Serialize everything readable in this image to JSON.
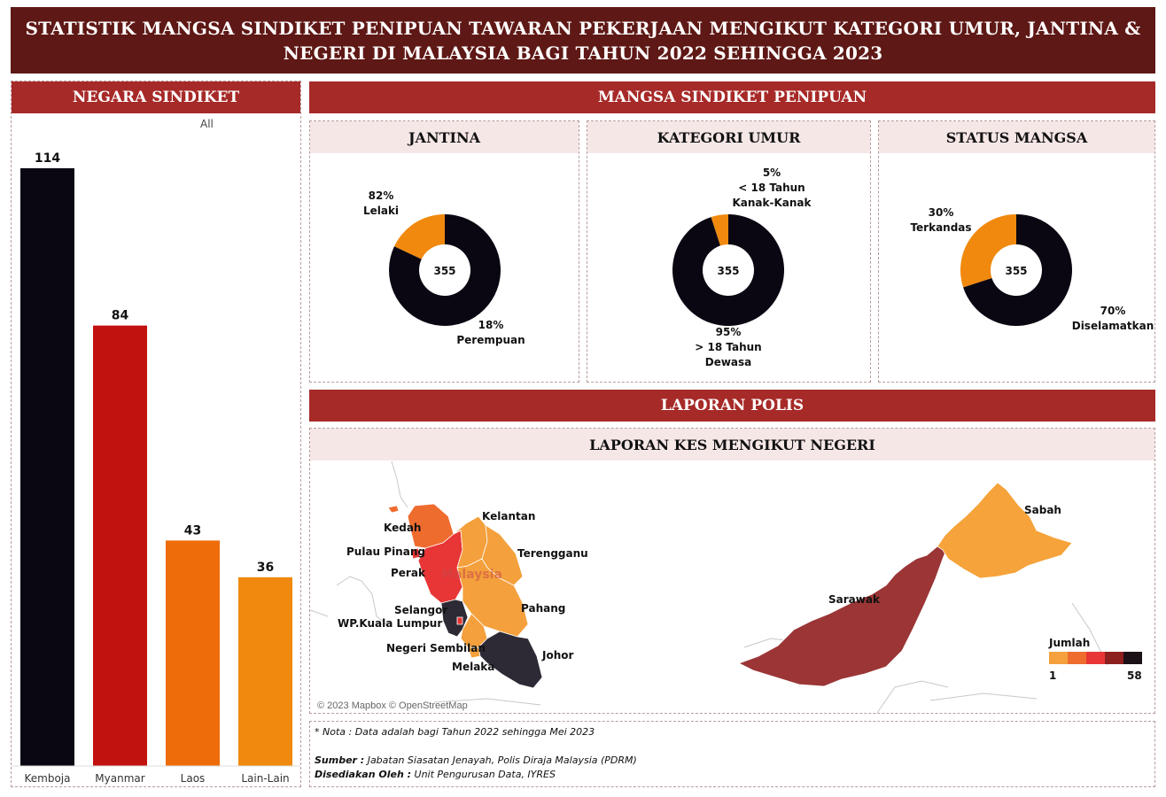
{
  "page": {
    "title": "STATISTIK MANGSA SINDIKET PENIPUAN TAWARAN PEKERJAAN MENGIKUT KATEGORI UMUR, JANTINA & NEGERI DI MALAYSIA BAGI TAHUN 2022 SEHINGGA 2023"
  },
  "left_panel": {
    "header": "NEGARA SINDIKET",
    "filter_label": "All"
  },
  "mangsa_section": {
    "header": "MANGSA SINDIKET PENIPUAN"
  },
  "donut_headers": {
    "jantina": "JANTINA",
    "umur": "KATEGORI UMUR",
    "status": "STATUS MANGSA"
  },
  "polis_section": {
    "header": "LAPORAN POLIS",
    "map_header": "LAPORAN KES MENGIKUT NEGERI"
  },
  "chart_data": [
    {
      "type": "bar",
      "categories": [
        "Kemboja",
        "Myanmar",
        "Laos",
        "Lain-Lain"
      ],
      "values": [
        114,
        84,
        43,
        36
      ],
      "colors": [
        "#0b0712",
        "#c2120f",
        "#ef6c0a",
        "#f0890e"
      ],
      "title": "NEGARA SINDIKET",
      "ylim": [
        0,
        114
      ],
      "grid": false,
      "data_labels": true
    },
    {
      "type": "pie",
      "title": "JANTINA",
      "center_label": "355",
      "slices": [
        {
          "name": "Lelaki",
          "percent": 82,
          "color": "#0b0712"
        },
        {
          "name": "Perempuan",
          "percent": 18,
          "color": "#f0890e"
        }
      ]
    },
    {
      "type": "pie",
      "title": "KATEGORI UMUR",
      "center_label": "355",
      "slices": [
        {
          "name": "> 18 Tahun Dewasa",
          "line1": "> 18 Tahun",
          "line2": "Dewasa",
          "percent": 95,
          "color": "#0b0712"
        },
        {
          "name": "< 18 Tahun Kanak-Kanak",
          "line1": "< 18 Tahun",
          "line2": "Kanak-Kanak",
          "percent": 5,
          "color": "#f0890e"
        }
      ]
    },
    {
      "type": "pie",
      "title": "STATUS MANGSA",
      "center_label": "355",
      "slices": [
        {
          "name": "Diselamatkan",
          "percent": 70,
          "color": "#0b0712"
        },
        {
          "name": "Terkandas",
          "percent": 30,
          "color": "#f0890e"
        }
      ]
    }
  ],
  "map": {
    "states": {
      "kedah": "Kedah",
      "pulau_pinang": "Pulau Pinang",
      "perak": "Perak",
      "selangor": "Selangor",
      "kl": "WP.Kuala Lumpur",
      "negeri_sembilan": "Negeri Sembilan",
      "melaka": "Melaka",
      "johor": "Johor",
      "pahang": "Pahang",
      "terengganu": "Terengganu",
      "kelantan": "Kelantan",
      "sabah": "Sabah",
      "sarawak": "Sarawak"
    },
    "watermark": "Malaysia",
    "colors": {
      "kedah": "#ef6c2f",
      "perak": "#e83535",
      "east_coast": "#f4a03c",
      "central_south": "#2d2a35",
      "sabah": "#f5a33a",
      "sarawak": "#9b3536"
    },
    "attribution": "© 2023 Mapbox © OpenStreetMap",
    "legend": {
      "title": "Jumlah",
      "min": "1",
      "max": "58",
      "colors": [
        "#f4a03c",
        "#ef6c2f",
        "#e83535",
        "#8e1f1f",
        "#1c1117"
      ]
    }
  },
  "footer": {
    "note": "* Nota : Data adalah bagi Tahun 2022 sehingga Mei 2023",
    "sumber_label": "Sumber :",
    "sumber": " Jabatan Siasatan Jenayah, Polis Diraja Malaysia (PDRM)",
    "disediakan_label": "Disediakan Oleh :",
    "disediakan": " Unit Pengurusan Data, IYRES"
  }
}
